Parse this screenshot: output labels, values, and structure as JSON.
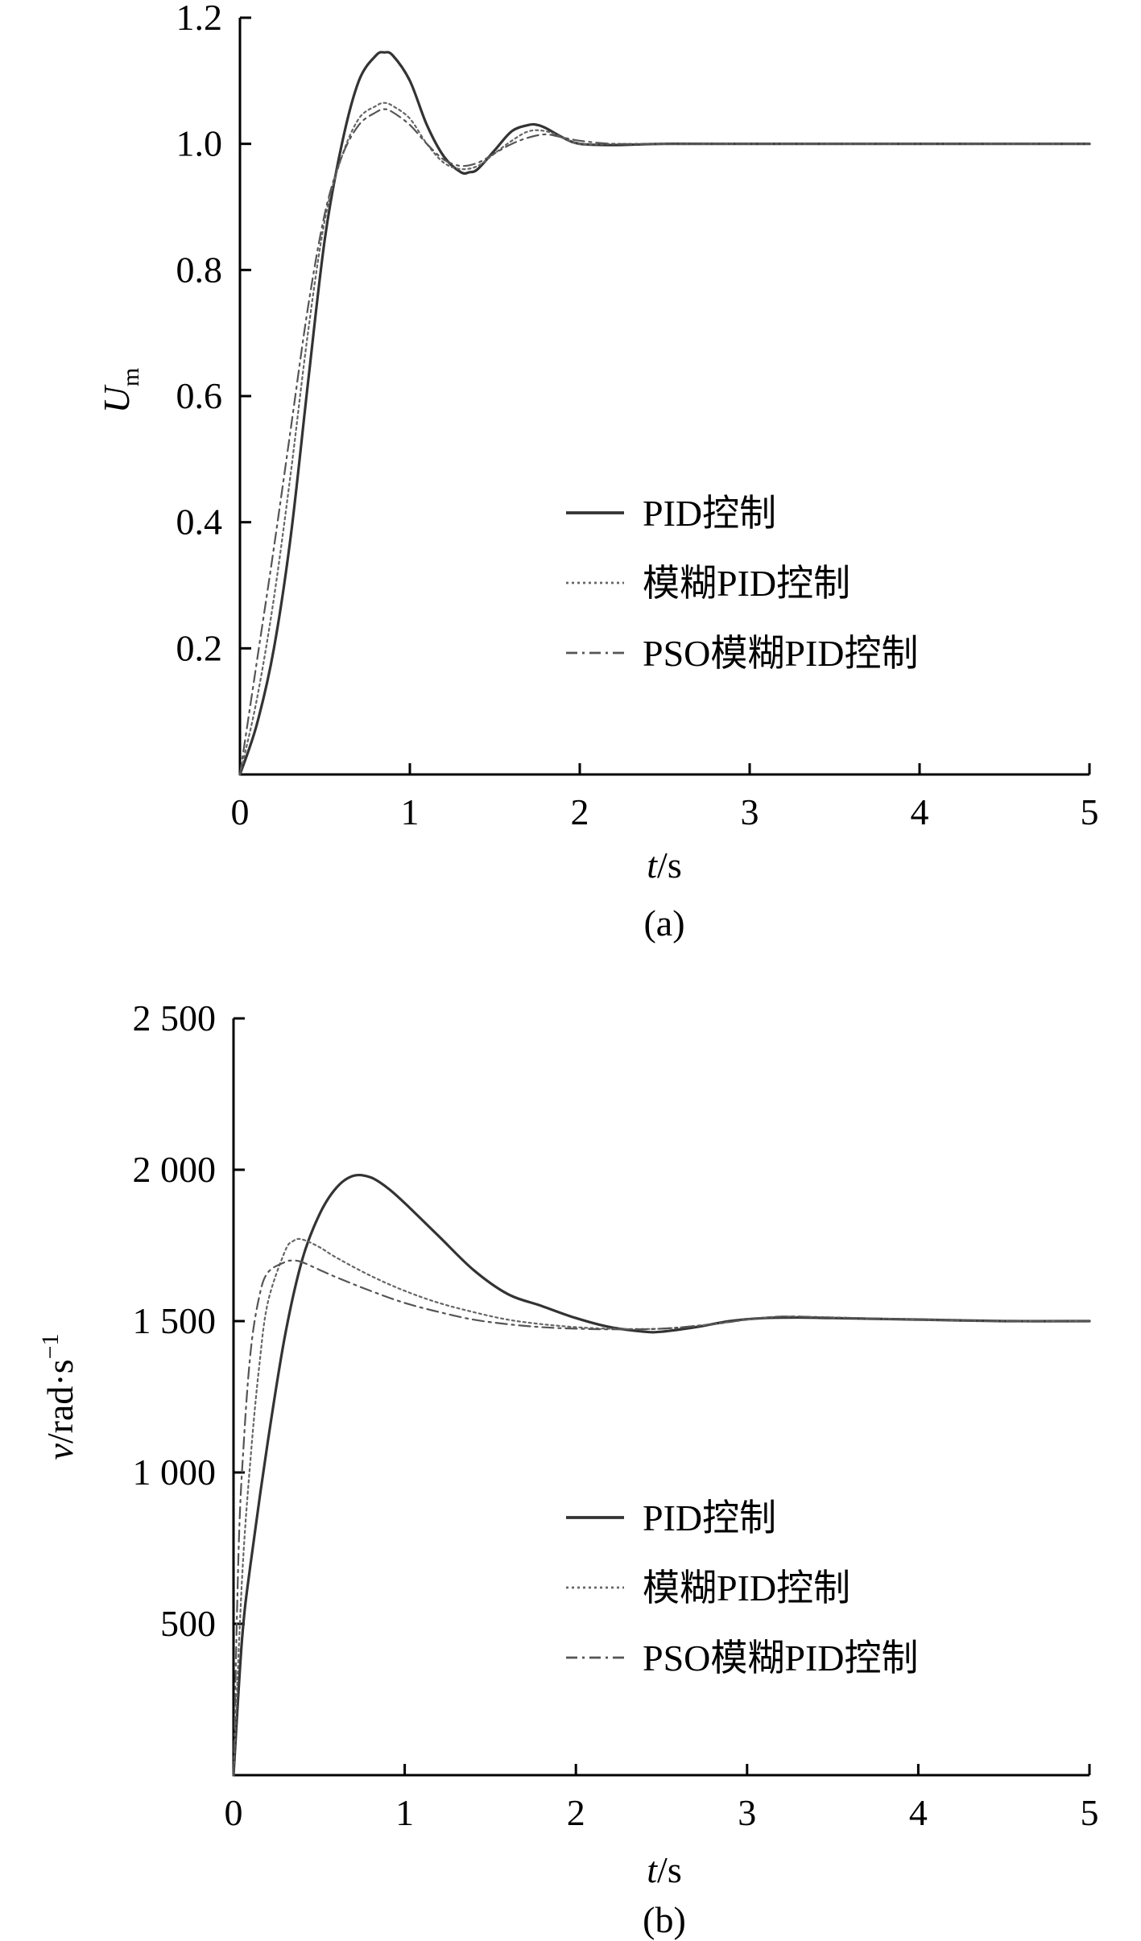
{
  "chart_data": [
    {
      "type": "line",
      "panel": "(a)",
      "caption": "(a)",
      "xlabel": "t/s",
      "ylabel": "U_m",
      "xlim": [
        0,
        5
      ],
      "ylim": [
        0,
        1.2
      ],
      "xticks": [
        0,
        1,
        2,
        3,
        4,
        5
      ],
      "yticks": [
        0.2,
        0.4,
        0.6,
        0.8,
        1.0,
        1.2
      ],
      "ytick_labels": [
        "0.2",
        "0.4",
        "0.6",
        "0.8",
        "1.0",
        "1.2"
      ],
      "grid": false,
      "legend_position": "right-middle",
      "series": [
        {
          "name": "PID控制",
          "style": "solid",
          "x": [
            0,
            0.1,
            0.2,
            0.3,
            0.4,
            0.5,
            0.6,
            0.7,
            0.8,
            0.85,
            0.9,
            1.0,
            1.1,
            1.2,
            1.3,
            1.35,
            1.4,
            1.5,
            1.6,
            1.7,
            1.75,
            1.8,
            1.9,
            2.0,
            2.2,
            2.5,
            3,
            4,
            5
          ],
          "y": [
            0,
            0.08,
            0.2,
            0.38,
            0.62,
            0.85,
            1.0,
            1.1,
            1.14,
            1.145,
            1.14,
            1.1,
            1.03,
            0.98,
            0.955,
            0.955,
            0.96,
            0.99,
            1.02,
            1.03,
            1.03,
            1.025,
            1.01,
            1.0,
            0.998,
            1.0,
            1.0,
            1.0,
            1.0
          ]
        },
        {
          "name": "模糊PID控制",
          "style": "dotted",
          "x": [
            0,
            0.1,
            0.2,
            0.3,
            0.4,
            0.5,
            0.6,
            0.7,
            0.8,
            0.85,
            0.9,
            1.0,
            1.1,
            1.2,
            1.3,
            1.4,
            1.5,
            1.6,
            1.7,
            1.8,
            1.9,
            2.0,
            2.2,
            2.5,
            3,
            4,
            5
          ],
          "y": [
            0,
            0.12,
            0.28,
            0.48,
            0.7,
            0.88,
            0.98,
            1.04,
            1.06,
            1.065,
            1.06,
            1.04,
            1.0,
            0.97,
            0.96,
            0.965,
            0.985,
            1.005,
            1.02,
            1.02,
            1.01,
            1.0,
            1.0,
            1.0,
            1.0,
            1.0,
            1.0
          ]
        },
        {
          "name": "PSO模糊PID控制",
          "style": "dashdot",
          "x": [
            0,
            0.1,
            0.2,
            0.3,
            0.4,
            0.5,
            0.6,
            0.7,
            0.8,
            0.85,
            0.9,
            1.0,
            1.1,
            1.2,
            1.3,
            1.4,
            1.5,
            1.6,
            1.7,
            1.8,
            1.9,
            2.0,
            2.2,
            2.5,
            3,
            4,
            5
          ],
          "y": [
            0,
            0.18,
            0.36,
            0.55,
            0.74,
            0.89,
            0.98,
            1.03,
            1.05,
            1.055,
            1.05,
            1.03,
            1.0,
            0.975,
            0.965,
            0.97,
            0.985,
            1.0,
            1.01,
            1.015,
            1.01,
            1.005,
            1.0,
            1.0,
            1.0,
            1.0,
            1.0
          ]
        }
      ]
    },
    {
      "type": "line",
      "panel": "(b)",
      "caption": "(b)",
      "xlabel": "t/s",
      "ylabel": "v/rad·s⁻¹",
      "xlim": [
        0,
        5
      ],
      "ylim": [
        0,
        2500
      ],
      "xticks": [
        0,
        1,
        2,
        3,
        4,
        5
      ],
      "yticks": [
        500,
        1000,
        1500,
        2000,
        2500
      ],
      "ytick_labels": [
        "500",
        "1 000",
        "1 500",
        "2 000",
        "2 500"
      ],
      "grid": false,
      "legend_position": "right-middle",
      "series": [
        {
          "name": "PID控制",
          "style": "solid",
          "x": [
            0,
            0.05,
            0.1,
            0.2,
            0.3,
            0.4,
            0.5,
            0.6,
            0.7,
            0.8,
            0.9,
            1.0,
            1.2,
            1.4,
            1.6,
            1.8,
            2.0,
            2.2,
            2.4,
            2.5,
            2.7,
            2.9,
            3.1,
            3.3,
            3.5,
            4,
            4.5,
            5
          ],
          "y": [
            0,
            450,
            700,
            1100,
            1450,
            1700,
            1850,
            1940,
            1980,
            1975,
            1940,
            1890,
            1780,
            1670,
            1590,
            1550,
            1510,
            1480,
            1465,
            1465,
            1480,
            1500,
            1510,
            1512,
            1510,
            1505,
            1500,
            1500
          ]
        },
        {
          "name": "模糊PID控制",
          "style": "dotted",
          "x": [
            0,
            0.05,
            0.1,
            0.15,
            0.2,
            0.3,
            0.35,
            0.4,
            0.5,
            0.6,
            0.8,
            1.0,
            1.2,
            1.4,
            1.6,
            1.8,
            2.0,
            2.2,
            2.5,
            2.8,
            3.0,
            3.2,
            3.5,
            4,
            4.5,
            5
          ],
          "y": [
            0,
            650,
            1050,
            1350,
            1560,
            1730,
            1765,
            1770,
            1745,
            1710,
            1650,
            1600,
            1560,
            1530,
            1505,
            1490,
            1480,
            1475,
            1475,
            1490,
            1505,
            1515,
            1512,
            1505,
            1500,
            1500
          ]
        },
        {
          "name": "PSO模糊PID控制",
          "style": "dashdot",
          "x": [
            0,
            0.03,
            0.06,
            0.1,
            0.15,
            0.2,
            0.3,
            0.35,
            0.4,
            0.5,
            0.6,
            0.8,
            1.0,
            1.2,
            1.4,
            1.6,
            1.8,
            2.0,
            2.2,
            2.5,
            2.8,
            3.0,
            3.2,
            3.5,
            4,
            4.5,
            5
          ],
          "y": [
            0,
            750,
            1100,
            1400,
            1580,
            1660,
            1695,
            1700,
            1695,
            1670,
            1645,
            1600,
            1560,
            1530,
            1505,
            1490,
            1480,
            1475,
            1473,
            1475,
            1490,
            1505,
            1515,
            1512,
            1505,
            1500,
            1500
          ]
        }
      ]
    }
  ]
}
